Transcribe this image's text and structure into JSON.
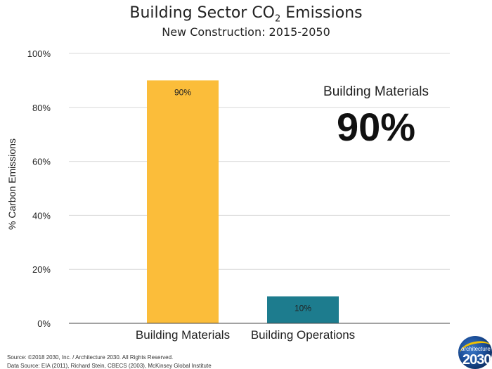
{
  "header": {
    "title_prefix": "Building Sector CO",
    "title_sub": "2",
    "title_suffix": " Emissions",
    "subtitle": "New Construction: 2015-2050"
  },
  "chart_data": {
    "type": "bar",
    "title": "Building Sector CO2 Emissions",
    "subtitle": "New Construction: 2015-2050",
    "categories": [
      "Building Materials",
      "Building Operations"
    ],
    "values": [
      90,
      10
    ],
    "data_labels": [
      "90%",
      "10%"
    ],
    "colors": [
      "#fbbd3a",
      "#1d7c8e"
    ],
    "ylabel": "% Carbon Emissions",
    "xlabel": "",
    "ylim": [
      0,
      100
    ],
    "yticks": [
      0,
      20,
      40,
      60,
      80,
      100
    ],
    "ytick_labels": [
      "0%",
      "20%",
      "40%",
      "60%",
      "80%",
      "100%"
    ],
    "grid": true,
    "annotation": {
      "label": "Building Materials",
      "value": "90%"
    }
  },
  "footer": {
    "source_line1": "Source: ©2018 2030, Inc. / Architecture 2030. All Rights Reserved.",
    "source_line2": "Data Source: EIA (2011), Richard Stein, CBECS (2003), McKinsey Global Institute",
    "logo_text_top": "architecture",
    "logo_text_main": "2030"
  }
}
